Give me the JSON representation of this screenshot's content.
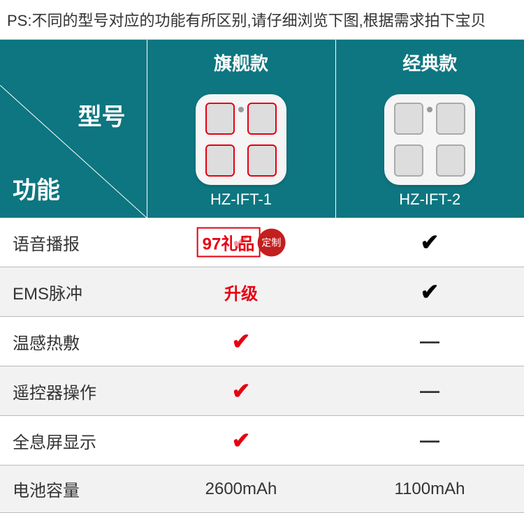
{
  "ps_text": "PS:不同的型号对应的功能有所区别,请仔细浏览下图,根据需求拍下宝贝",
  "header": {
    "col1": "旗舰款",
    "col2": "经典款"
  },
  "corner": {
    "model": "型号",
    "func": "功能"
  },
  "models": {
    "a": {
      "name": "HZ-IFT-1",
      "pad_border": "#e60012"
    },
    "b": {
      "name": "HZ-IFT-2",
      "pad_border": "#aaaaaa"
    }
  },
  "features": [
    {
      "label": "语音播报",
      "a": {
        "t": "check-red",
        "v": "✔"
      },
      "b": {
        "t": "check-blk",
        "v": "✔"
      }
    },
    {
      "label": "EMS脉冲",
      "a": {
        "t": "upgrade",
        "v": "升级"
      },
      "b": {
        "t": "check-blk",
        "v": "✔"
      }
    },
    {
      "label": "温感热敷",
      "a": {
        "t": "check-red",
        "v": "✔"
      },
      "b": {
        "t": "dash",
        "v": "—"
      }
    },
    {
      "label": "遥控器操作",
      "a": {
        "t": "check-red",
        "v": "✔"
      },
      "b": {
        "t": "dash",
        "v": "—"
      }
    },
    {
      "label": "全息屏显示",
      "a": {
        "t": "check-red",
        "v": "✔"
      },
      "b": {
        "t": "dash",
        "v": "—"
      }
    },
    {
      "label": "电池容量",
      "a": {
        "t": "val",
        "v": "2600mAh"
      },
      "b": {
        "t": "val",
        "v": "1100mAh"
      }
    }
  ],
  "watermark": {
    "text": "97礼品",
    "seal": "定制"
  },
  "colors": {
    "brand": "#0d7680",
    "accent": "#e60012"
  }
}
